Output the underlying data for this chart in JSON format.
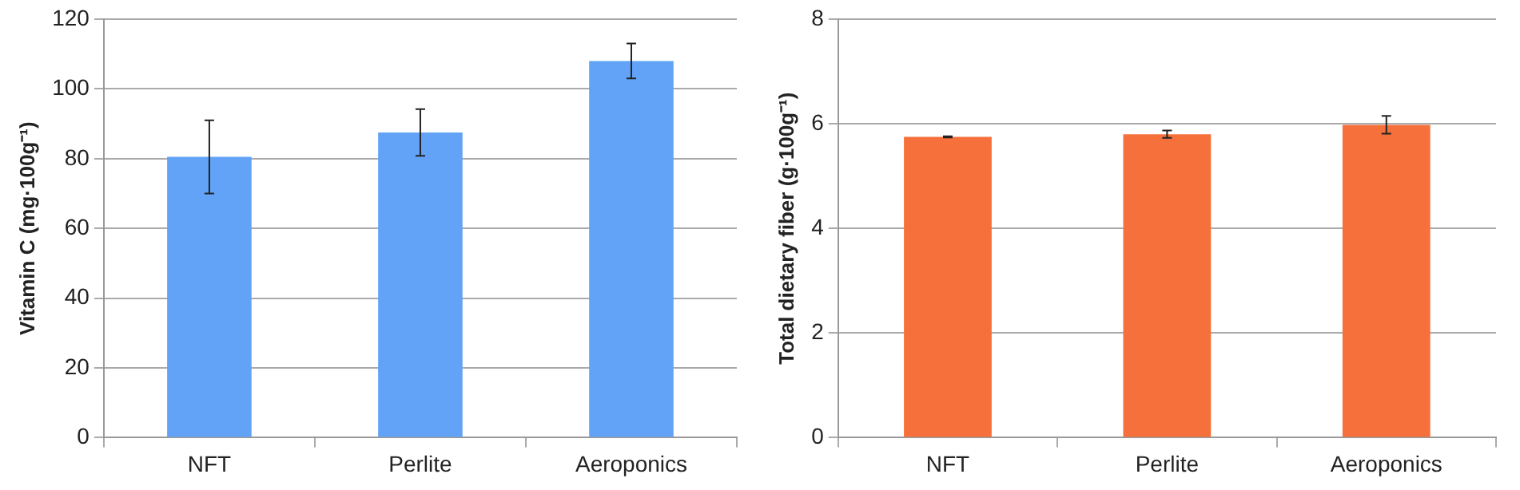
{
  "chart_data": [
    {
      "type": "bar",
      "ylabel": "Vitamin C (mg·100g⁻¹)",
      "categories": [
        "NFT",
        "Perlite",
        "Aeroponics"
      ],
      "values": [
        80.5,
        87.5,
        108
      ],
      "errors": [
        10.5,
        6.7,
        5
      ],
      "color": "#62a3f7",
      "ylim": [
        0,
        120
      ],
      "yticks": [
        0,
        20,
        40,
        60,
        80,
        100,
        120
      ],
      "grid": "y"
    },
    {
      "type": "bar",
      "ylabel": "Total dietary fiber (g·100g⁻¹)",
      "categories": [
        "NFT",
        "Perlite",
        "Aeroponics"
      ],
      "values": [
        5.75,
        5.8,
        5.98
      ],
      "errors": [
        0.01,
        0.07,
        0.17
      ],
      "color": "#f5703a",
      "ylim": [
        0,
        8
      ],
      "yticks": [
        0,
        2,
        4,
        6,
        8
      ],
      "grid": "y"
    }
  ]
}
